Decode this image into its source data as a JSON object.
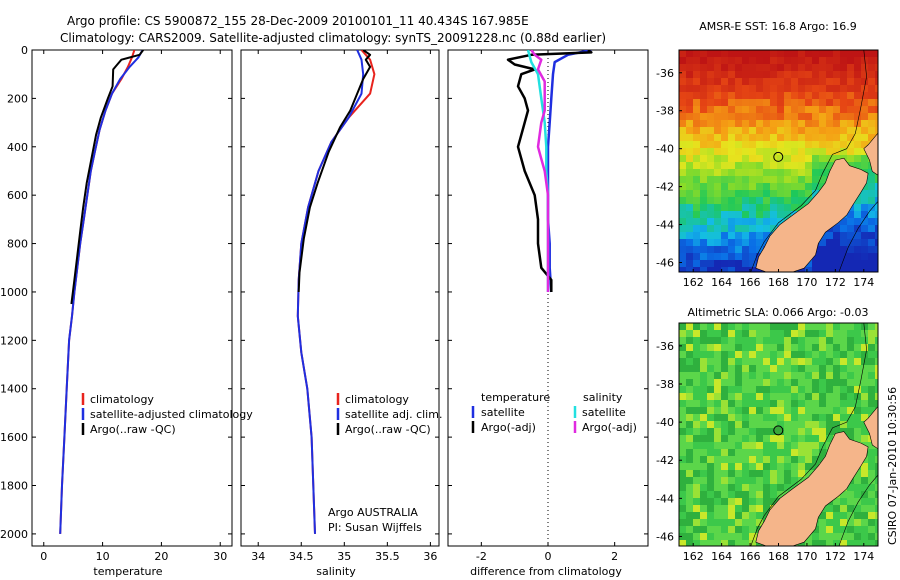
{
  "header": {
    "line1": "Argo profile: CS 5900872_155 28-Dec-2009 20100101_11 40.434S 167.985E",
    "line2": "Climatology: CARS2009. Satellite-adjusted climatology: synTS_20091228.nc (0.88d earlier)"
  },
  "side_stamp": "CSIRO 07-Jan-2010 10:30:56",
  "colors": {
    "red": "#e8231d",
    "blue": "#1f2fe0",
    "black": "#000000",
    "cyan": "#22e0e0",
    "magenta": "#e02ae0"
  },
  "chart_data": [
    {
      "type": "line",
      "name": "temperature",
      "xlabel": "temperature",
      "ylabel": "",
      "xlim": [
        -2,
        32
      ],
      "ylim": [
        0,
        2050
      ],
      "y_reversed": true,
      "xticks": [
        0,
        10,
        20,
        30
      ],
      "yticks": [
        0,
        200,
        400,
        600,
        800,
        1000,
        1200,
        1400,
        1600,
        1800,
        2000
      ],
      "legend": {
        "position": "lower-right",
        "entries": [
          "climatology",
          "satellite-adjusted climatology",
          "Argo(..raw -QC)"
        ]
      },
      "series": [
        {
          "name": "climatology",
          "color": "red",
          "points": [
            [
              15.4,
              0
            ],
            [
              15.0,
              30
            ],
            [
              14.3,
              70
            ],
            [
              13.2,
              120
            ],
            [
              11.6,
              180
            ],
            [
              10.5,
              250
            ],
            [
              9.5,
              330
            ],
            [
              8.7,
              420
            ],
            [
              8.0,
              500
            ],
            [
              7.4,
              600
            ],
            [
              6.8,
              700
            ],
            [
              6.2,
              800
            ],
            [
              5.7,
              900
            ],
            [
              5.2,
              1000
            ],
            [
              4.8,
              1100
            ],
            [
              4.3,
              1200
            ],
            [
              3.9,
              1400
            ],
            [
              3.5,
              1600
            ],
            [
              3.1,
              1800
            ],
            [
              2.8,
              2000
            ]
          ]
        },
        {
          "name": "satellite-adjusted climatology",
          "color": "blue",
          "points": [
            [
              16.8,
              0
            ],
            [
              16.1,
              30
            ],
            [
              14.6,
              70
            ],
            [
              13.0,
              120
            ],
            [
              11.6,
              180
            ],
            [
              10.5,
              250
            ],
            [
              9.5,
              330
            ],
            [
              8.7,
              420
            ],
            [
              8.0,
              500
            ],
            [
              7.4,
              600
            ],
            [
              6.8,
              700
            ],
            [
              6.2,
              800
            ],
            [
              5.7,
              900
            ],
            [
              5.2,
              1000
            ],
            [
              4.8,
              1100
            ],
            [
              4.3,
              1200
            ],
            [
              3.9,
              1400
            ],
            [
              3.5,
              1600
            ],
            [
              3.1,
              1800
            ],
            [
              2.8,
              2000
            ]
          ]
        },
        {
          "name": "Argo(..raw -QC)",
          "color": "black",
          "points": [
            [
              16.9,
              0
            ],
            [
              16.6,
              10
            ],
            [
              16.3,
              20
            ],
            [
              13.2,
              40
            ],
            [
              12.5,
              60
            ],
            [
              11.8,
              80
            ],
            [
              11.7,
              150
            ],
            [
              10.9,
              200
            ],
            [
              9.7,
              280
            ],
            [
              8.9,
              350
            ],
            [
              8.1,
              450
            ],
            [
              7.3,
              550
            ],
            [
              6.7,
              650
            ],
            [
              6.2,
              750
            ],
            [
              5.7,
              850
            ],
            [
              5.2,
              950
            ],
            [
              4.7,
              1050
            ]
          ]
        }
      ]
    },
    {
      "type": "line",
      "name": "salinity",
      "xlabel": "salinity",
      "xlim": [
        33.8,
        36.1
      ],
      "ylim": [
        0,
        2050
      ],
      "y_reversed": true,
      "xticks": [
        34,
        34.5,
        35,
        35.5,
        36
      ],
      "legend": {
        "position": "lower-right",
        "entries": [
          "climatology",
          "satellite adj. clim.",
          "Argo(..raw -QC)"
        ]
      },
      "series": [
        {
          "name": "climatology",
          "color": "red",
          "points": [
            [
              35.2,
              0
            ],
            [
              35.3,
              40
            ],
            [
              35.35,
              100
            ],
            [
              35.3,
              180
            ],
            [
              35.05,
              280
            ],
            [
              34.85,
              380
            ],
            [
              34.7,
              500
            ],
            [
              34.58,
              650
            ],
            [
              34.5,
              800
            ],
            [
              34.47,
              950
            ],
            [
              34.46,
              1100
            ],
            [
              34.5,
              1250
            ],
            [
              34.57,
              1400
            ],
            [
              34.62,
              1600
            ],
            [
              34.64,
              1800
            ],
            [
              34.66,
              2000
            ]
          ]
        },
        {
          "name": "satellite adj. clim.",
          "color": "blue",
          "points": [
            [
              35.15,
              0
            ],
            [
              35.2,
              40
            ],
            [
              35.22,
              100
            ],
            [
              35.2,
              180
            ],
            [
              35.05,
              280
            ],
            [
              34.85,
              380
            ],
            [
              34.7,
              500
            ],
            [
              34.58,
              650
            ],
            [
              34.5,
              800
            ],
            [
              34.47,
              950
            ],
            [
              34.46,
              1100
            ],
            [
              34.5,
              1250
            ],
            [
              34.57,
              1400
            ],
            [
              34.62,
              1600
            ],
            [
              34.64,
              1800
            ],
            [
              34.66,
              2000
            ]
          ]
        },
        {
          "name": "Argo(..raw -QC)",
          "color": "black",
          "points": [
            [
              35.22,
              0
            ],
            [
              35.3,
              20
            ],
            [
              35.25,
              40
            ],
            [
              35.3,
              70
            ],
            [
              35.22,
              120
            ],
            [
              35.15,
              180
            ],
            [
              35.07,
              250
            ],
            [
              34.95,
              320
            ],
            [
              34.82,
              420
            ],
            [
              34.69,
              550
            ],
            [
              34.6,
              650
            ],
            [
              34.53,
              780
            ],
            [
              34.48,
              920
            ],
            [
              34.47,
              1000
            ]
          ]
        }
      ],
      "annotation": [
        "Argo AUSTRALIA",
        "PI: Susan Wijffels"
      ]
    },
    {
      "type": "line",
      "name": "difference",
      "xlabel": "difference from climatology",
      "xlim": [
        -3,
        3
      ],
      "ylim": [
        0,
        2050
      ],
      "y_reversed": true,
      "xticks": [
        -2,
        0,
        2
      ],
      "legend": {
        "position": "lower-center",
        "columns": [
          {
            "title": "temperature",
            "entries": [
              "satellite",
              "Argo(-adj)"
            ]
          },
          {
            "title": "salinity",
            "entries": [
              "satellite",
              "Argo(-adj)"
            ]
          }
        ]
      },
      "series": [
        {
          "name": "temperature satellite",
          "color": "blue",
          "points": [
            [
              1.3,
              0
            ],
            [
              0.6,
              20
            ],
            [
              0.2,
              50
            ],
            [
              0.15,
              100
            ],
            [
              0.1,
              200
            ],
            [
              0.05,
              300
            ],
            [
              0.0,
              400
            ],
            [
              0.0,
              500
            ],
            [
              0.0,
              600
            ],
            [
              0.0,
              700
            ],
            [
              0.05,
              800
            ],
            [
              0.05,
              900
            ],
            [
              0.1,
              1000
            ]
          ]
        },
        {
          "name": "temperature Argo(-adj)",
          "color": "black",
          "points": [
            [
              1.2,
              0
            ],
            [
              1.3,
              10
            ],
            [
              -0.5,
              20
            ],
            [
              -1.2,
              40
            ],
            [
              -1.0,
              60
            ],
            [
              -0.4,
              80
            ],
            [
              -0.8,
              100
            ],
            [
              -0.9,
              150
            ],
            [
              -0.7,
              200
            ],
            [
              -0.6,
              250
            ],
            [
              -0.7,
              300
            ],
            [
              -0.9,
              400
            ],
            [
              -0.7,
              500
            ],
            [
              -0.4,
              600
            ],
            [
              -0.3,
              700
            ],
            [
              -0.3,
              800
            ],
            [
              -0.2,
              900
            ],
            [
              0.1,
              950
            ],
            [
              0.1,
              1000
            ]
          ]
        },
        {
          "name": "salinity satellite",
          "color": "cyan",
          "points": [
            [
              -0.6,
              0
            ],
            [
              -0.5,
              50
            ],
            [
              -0.3,
              100
            ],
            [
              -0.2,
              200
            ],
            [
              -0.1,
              300
            ],
            [
              -0.05,
              400
            ],
            [
              -0.05,
              500
            ],
            [
              0.0,
              600
            ],
            [
              0.0,
              700
            ],
            [
              0.0,
              800
            ],
            [
              0.0,
              900
            ],
            [
              0.0,
              1000
            ]
          ]
        },
        {
          "name": "salinity Argo(-adj)",
          "color": "magenta",
          "points": [
            [
              -0.5,
              0
            ],
            [
              -0.4,
              20
            ],
            [
              -0.2,
              40
            ],
            [
              -0.3,
              80
            ],
            [
              -0.1,
              130
            ],
            [
              -0.1,
              200
            ],
            [
              -0.1,
              250
            ],
            [
              -0.2,
              300
            ],
            [
              -0.3,
              400
            ],
            [
              -0.2,
              450
            ],
            [
              -0.1,
              500
            ],
            [
              0.0,
              600
            ],
            [
              0.0,
              700
            ],
            [
              0.0,
              800
            ],
            [
              0.0,
              900
            ],
            [
              0.0,
              1000
            ]
          ]
        }
      ]
    },
    {
      "type": "heatmap",
      "name": "sst-map",
      "title": "AMSR-E SST: 16.8 Argo: 16.9",
      "xlim": [
        161,
        175
      ],
      "ylim": [
        -46.5,
        -34.8
      ],
      "xticks": [
        162,
        164,
        166,
        168,
        170,
        172,
        174
      ],
      "yticks": [
        -36,
        -38,
        -40,
        -42,
        -44,
        -46
      ],
      "argo_position": [
        167.985,
        -40.434
      ]
    },
    {
      "type": "heatmap",
      "name": "sla-map",
      "title": "Altimetric SLA: 0.066 Argo: -0.03",
      "xlim": [
        161,
        175
      ],
      "ylim": [
        -46.5,
        -34.8
      ],
      "xticks": [
        162,
        164,
        166,
        168,
        170,
        172,
        174
      ],
      "yticks": [
        -36,
        -38,
        -40,
        -42,
        -44,
        -46
      ],
      "argo_position": [
        167.985,
        -40.434
      ]
    }
  ]
}
